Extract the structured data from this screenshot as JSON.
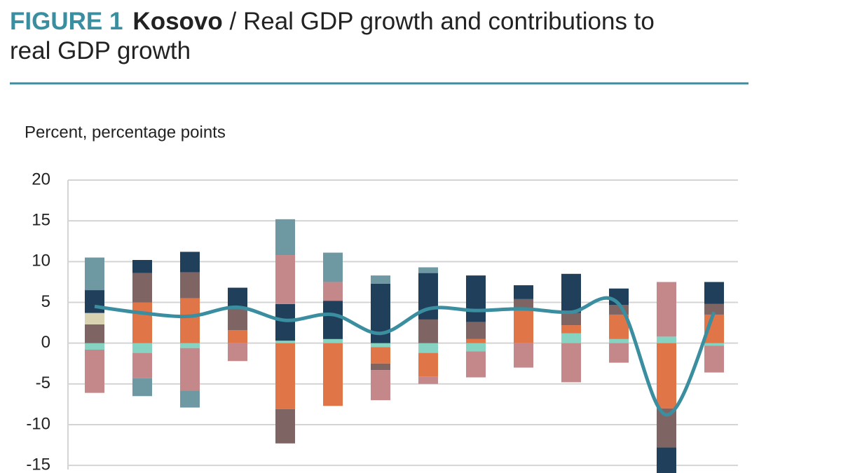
{
  "chart_data": {
    "type": "bar",
    "figure_label": "FIGURE 1",
    "title_bold": "Kosovo",
    "title": "/ Real GDP growth and contributions to real GDP growth",
    "y_label": "Percent, percentage points",
    "categories": [
      null,
      null,
      null,
      null,
      null,
      null,
      null,
      null,
      null,
      null,
      null,
      null,
      null,
      null
    ],
    "series": [
      {
        "color": "#86d3c2",
        "values": [
          -0.8,
          -1.2,
          -0.6,
          0,
          0.3,
          0.5,
          -0.5,
          -1.2,
          -1,
          0,
          1.2,
          0.5,
          0.8,
          -0.3
        ]
      },
      {
        "color": "#e07548",
        "values": [
          0,
          5,
          5.5,
          1.6,
          -8.1,
          -7.7,
          -2,
          -2.9,
          0.5,
          4.2,
          1,
          3,
          -8,
          3.5
        ]
      },
      {
        "color": "#7f6464",
        "values": [
          2.3,
          3.6,
          3.2,
          2.6,
          -4.2,
          0,
          -0.8,
          2.9,
          2.1,
          1.2,
          1.5,
          1.2,
          -4.8,
          1.3
        ]
      },
      {
        "color": "#d9d3b2",
        "values": [
          1.4,
          0,
          0,
          0,
          0,
          0,
          0,
          0,
          0,
          0,
          0,
          0,
          0,
          0
        ]
      },
      {
        "color": "#1f3f5b",
        "values": [
          2.8,
          1.6,
          2.5,
          2.6,
          4.5,
          4.7,
          7.3,
          5.7,
          5.7,
          1.7,
          4.8,
          2,
          -3.2,
          2.7
        ]
      },
      {
        "color": "#c4888b",
        "values": [
          -5.3,
          -3.1,
          -5.2,
          -2.2,
          6,
          2.3,
          -3.7,
          -0.9,
          -3.2,
          -3,
          -4.8,
          -2.4,
          6.7,
          -3.3
        ]
      },
      {
        "color": "#6f99a2",
        "values": [
          4,
          -2.2,
          -2.1,
          0,
          4.4,
          3.6,
          1,
          0.7,
          0,
          0,
          0,
          0,
          0,
          0
        ]
      },
      {
        "type": "line",
        "color": "#3a8ea0",
        "values": [
          4.5,
          3.7,
          3.3,
          4.4,
          2.8,
          3.5,
          1.2,
          4.2,
          4.0,
          4.2,
          3.8,
          4.8,
          -8.8,
          3.8
        ]
      }
    ],
    "ylim": [
      -15.5,
      20
    ],
    "yticks": [
      -15,
      -10,
      -5,
      0,
      5,
      10,
      15,
      20
    ],
    "grid": true
  }
}
